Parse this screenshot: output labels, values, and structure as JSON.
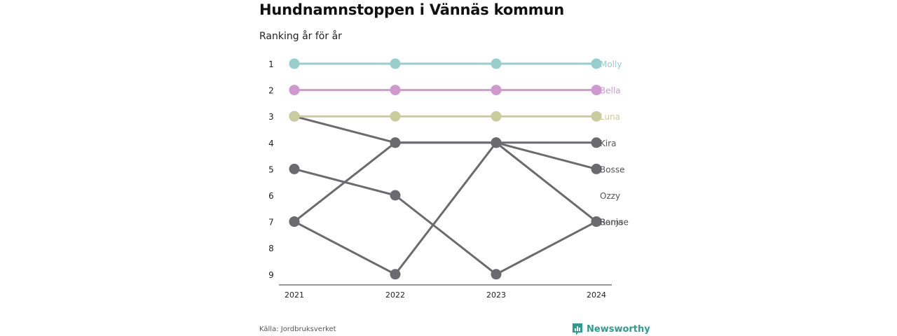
{
  "title": "Hundnamnstoppen i Vännäs kommun",
  "subtitle": "Ranking år för år",
  "source": "Källa: Jordbruksverket",
  "brand": {
    "name": "Newsworthy",
    "icon": "bar-chart-logo-icon",
    "color": "#2a9d8f"
  },
  "chart_data": {
    "type": "line",
    "x": [
      "2021",
      "2022",
      "2023",
      "2024"
    ],
    "y_ticks": [
      "1",
      "2",
      "3",
      "4",
      "5",
      "6",
      "7",
      "8",
      "9"
    ],
    "ylim": [
      1,
      9
    ],
    "y_reversed": true,
    "grid": false,
    "series": [
      {
        "name": "Molly",
        "ranks": [
          1,
          1,
          1,
          1
        ],
        "color": "#96cecd"
      },
      {
        "name": "Bella",
        "ranks": [
          2,
          2,
          2,
          2
        ],
        "color": "#cf99cf"
      },
      {
        "name": "Luna",
        "ranks": [
          3,
          3,
          3,
          3
        ],
        "color": "#c9cc9d"
      },
      {
        "name": "Kira",
        "ranks": [
          7,
          4,
          4,
          4
        ],
        "color": "#6b6b6f"
      },
      {
        "name": "Bosse",
        "ranks": [
          7,
          9,
          4,
          5
        ],
        "color": "#6b6b6f"
      },
      {
        "name": "Bamse",
        "ranks": [
          5,
          6,
          9,
          7
        ],
        "color": "#6b6b6f"
      },
      {
        "name": "Ronja",
        "ranks": [
          3,
          4,
          4,
          7
        ],
        "color": "#6b6b6f"
      },
      {
        "name": "Ozzy",
        "ranks": [
          null,
          null,
          null,
          null
        ],
        "color": "#6b6b6f"
      }
    ]
  }
}
